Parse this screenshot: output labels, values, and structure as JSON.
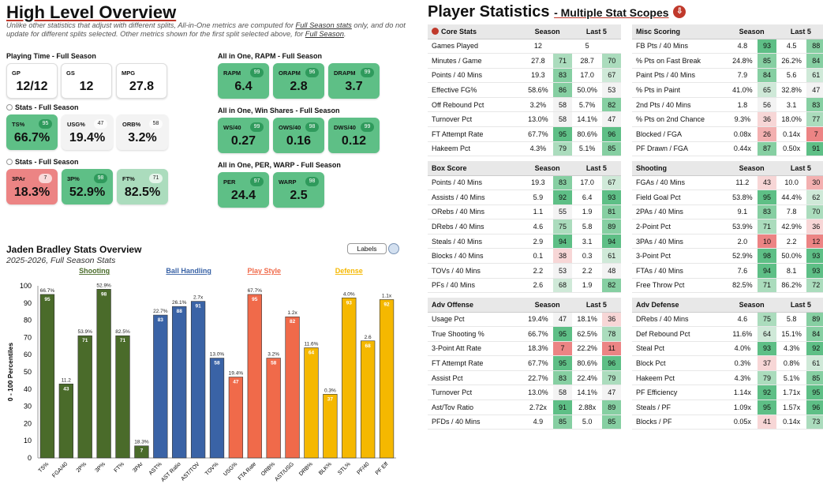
{
  "high_level": {
    "title": "High Level Overview",
    "disclaimer_1": "Unlike other statistics that adjust with different splits, All-in-One metrics are computed for ",
    "disclaimer_link": "Full Season stats",
    "disclaimer_2": " only, and do not update for different splits selected. Other metrics shown for the first split selected above, for ",
    "disclaimer_link2": "Full Season",
    "disclaimer_3": ".",
    "playing_time_label": "Playing Time - Full Season",
    "playing": [
      {
        "label": "GP",
        "value": "12/12"
      },
      {
        "label": "GS",
        "value": "12"
      },
      {
        "label": "MPG",
        "value": "27.8"
      }
    ],
    "stats1_label": "Stats - Full Season",
    "stats1": [
      {
        "label": "TS%",
        "value": "66.7%",
        "pct": "95"
      },
      {
        "label": "USG%",
        "value": "19.4%",
        "pct": "47"
      },
      {
        "label": "ORB%",
        "value": "3.2%",
        "pct": "58"
      }
    ],
    "stats2_label": "Stats - Full Season",
    "stats2": [
      {
        "label": "3PAr",
        "value": "18.3%",
        "pct": "7"
      },
      {
        "label": "3P%",
        "value": "52.9%",
        "pct": "98"
      },
      {
        "label": "FT%",
        "value": "82.5%",
        "pct": "71"
      }
    ],
    "rapm_label": "All in One, RAPM - Full Season",
    "rapm": [
      {
        "label": "RAPM",
        "value": "6.4",
        "pct": "99"
      },
      {
        "label": "ORAPM",
        "value": "2.8",
        "pct": "96"
      },
      {
        "label": "DRAPM",
        "value": "3.7",
        "pct": "99"
      }
    ],
    "ws_label": "All in One, Win Shares - Full Season",
    "ws": [
      {
        "label": "WS/40",
        "value": "0.27",
        "pct": "99"
      },
      {
        "label": "OWS/40",
        "value": "0.16",
        "pct": "98"
      },
      {
        "label": "DWS/40",
        "value": "0.12",
        "pct": "99"
      }
    ],
    "per_label": "All in One, PER, WARP - Full Season",
    "per": [
      {
        "label": "PER",
        "value": "24.4",
        "pct": "97"
      },
      {
        "label": "WARP",
        "value": "2.5",
        "pct": "98"
      }
    ]
  },
  "chart_data": {
    "type": "bar",
    "title": "Jaden Bradley Stats Overview",
    "subtitle": "2025-2026, Full Season Stats",
    "ylabel": "0 - 100 Percentiles",
    "ylim": [
      0,
      100
    ],
    "yticks": [
      0,
      10,
      20,
      30,
      40,
      50,
      60,
      70,
      80,
      90,
      100
    ],
    "labels_button": "Labels",
    "groups": [
      {
        "name": "Shooting",
        "color": "#4a6b2a"
      },
      {
        "name": "Ball Handling",
        "color": "#3a63a6"
      },
      {
        "name": "Play Style",
        "color": "#f06a4a"
      },
      {
        "name": "Defense",
        "color": "#f5b800"
      }
    ],
    "categories": [
      "TS%",
      "FGA/40",
      "2P%",
      "3P%",
      "FT%",
      "3PAr",
      "AST%",
      "AST Ratio",
      "AST/TOV",
      "TOV%",
      "USG%",
      "FTA Rate",
      "ORB%",
      "AST/USG",
      "DRB%",
      "BLK%",
      "STL%",
      "PF/40",
      "PF Eff"
    ],
    "values": [
      95,
      43,
      71,
      98,
      71,
      7,
      83,
      88,
      91,
      58,
      47,
      95,
      58,
      82,
      64,
      37,
      93,
      68,
      92
    ],
    "stat_labels": [
      "66.7%",
      "11.2",
      "53.9%",
      "52.9%",
      "82.5%",
      "18.3%",
      "22.7%",
      "26.1%",
      "2.7x",
      "13.0%",
      "19.4%",
      "67.7%",
      "3.2%",
      "1.2x",
      "11.6%",
      "0.3%",
      "4.0%",
      "2.6",
      "1.1x"
    ],
    "groups_index": [
      0,
      0,
      0,
      0,
      0,
      0,
      1,
      1,
      1,
      1,
      2,
      2,
      2,
      2,
      3,
      3,
      3,
      3,
      3
    ]
  },
  "player_stats": {
    "title": "Player Statistics",
    "subtitle": "- Multiple Stat Scopes",
    "col_season": "Season",
    "col_last5": "Last 5",
    "tables": [
      {
        "name": "Core Stats",
        "rows": [
          [
            "Games Played",
            "12",
            "",
            "5",
            ""
          ],
          [
            "Minutes / Game",
            "27.8",
            "71",
            "28.7",
            "70"
          ],
          [
            "Points / 40 Mins",
            "19.3",
            "83",
            "17.0",
            "67"
          ],
          [
            "Effective FG%",
            "58.6%",
            "86",
            "50.0%",
            "53"
          ],
          [
            "Off Rebound Pct",
            "3.2%",
            "58",
            "5.7%",
            "82"
          ],
          [
            "Turnover Pct",
            "13.0%",
            "58",
            "14.1%",
            "47"
          ],
          [
            "FT Attempt Rate",
            "67.7%",
            "95",
            "80.6%",
            "96"
          ],
          [
            "Hakeem Pct",
            "4.3%",
            "79",
            "5.1%",
            "85"
          ]
        ]
      },
      {
        "name": "Misc Scoring",
        "rows": [
          [
            "FB Pts / 40 Mins",
            "4.8",
            "93",
            "4.5",
            "88"
          ],
          [
            "% Pts on Fast Break",
            "24.8%",
            "85",
            "26.2%",
            "84"
          ],
          [
            "Paint Pts / 40 Mins",
            "7.9",
            "84",
            "5.6",
            "61"
          ],
          [
            "% Pts in Paint",
            "41.0%",
            "65",
            "32.8%",
            "47"
          ],
          [
            "2nd Pts / 40 Mins",
            "1.8",
            "56",
            "3.1",
            "83"
          ],
          [
            "% Pts on 2nd Chance",
            "9.3%",
            "36",
            "18.0%",
            "77"
          ],
          [
            "Blocked / FGA",
            "0.08x",
            "26",
            "0.14x",
            "7"
          ],
          [
            "PF Drawn / FGA",
            "0.44x",
            "87",
            "0.50x",
            "91"
          ]
        ]
      },
      {
        "name": "Box Score",
        "rows": [
          [
            "Points / 40 Mins",
            "19.3",
            "83",
            "17.0",
            "67"
          ],
          [
            "Assists / 40 Mins",
            "5.9",
            "92",
            "6.4",
            "93"
          ],
          [
            "ORebs / 40 Mins",
            "1.1",
            "55",
            "1.9",
            "81"
          ],
          [
            "DRebs / 40 Mins",
            "4.6",
            "75",
            "5.8",
            "89"
          ],
          [
            "Steals / 40 Mins",
            "2.9",
            "94",
            "3.1",
            "94"
          ],
          [
            "Blocks / 40 Mins",
            "0.1",
            "38",
            "0.3",
            "61"
          ],
          [
            "TOVs / 40 Mins",
            "2.2",
            "53",
            "2.2",
            "48"
          ],
          [
            "PFs / 40 Mins",
            "2.6",
            "68",
            "1.9",
            "82"
          ]
        ]
      },
      {
        "name": "Shooting",
        "rows": [
          [
            "FGAs / 40 Mins",
            "11.2",
            "43",
            "10.0",
            "30"
          ],
          [
            "Field Goal Pct",
            "53.8%",
            "95",
            "44.4%",
            "62"
          ],
          [
            "2PAs / 40 Mins",
            "9.1",
            "83",
            "7.8",
            "70"
          ],
          [
            "2-Point Pct",
            "53.9%",
            "71",
            "42.9%",
            "36"
          ],
          [
            "3PAs / 40 Mins",
            "2.0",
            "10",
            "2.2",
            "12"
          ],
          [
            "3-Point Pct",
            "52.9%",
            "98",
            "50.0%",
            "93"
          ],
          [
            "FTAs / 40 Mins",
            "7.6",
            "94",
            "8.1",
            "93"
          ],
          [
            "Free Throw Pct",
            "82.5%",
            "71",
            "86.2%",
            "72"
          ]
        ]
      },
      {
        "name": "Adv Offense",
        "rows": [
          [
            "Usage Pct",
            "19.4%",
            "47",
            "18.1%",
            "36"
          ],
          [
            "True Shooting %",
            "66.7%",
            "95",
            "62.5%",
            "78"
          ],
          [
            "3-Point Att Rate",
            "18.3%",
            "7",
            "22.2%",
            "11"
          ],
          [
            "FT Attempt Rate",
            "67.7%",
            "95",
            "80.6%",
            "96"
          ],
          [
            "Assist Pct",
            "22.7%",
            "83",
            "22.4%",
            "79"
          ],
          [
            "Turnover Pct",
            "13.0%",
            "58",
            "14.1%",
            "47"
          ],
          [
            "Ast/Tov Ratio",
            "2.72x",
            "91",
            "2.88x",
            "89"
          ],
          [
            "PFDs / 40 Mins",
            "4.9",
            "85",
            "5.0",
            "85"
          ]
        ]
      },
      {
        "name": "Adv Defense",
        "rows": [
          [
            "DRebs / 40 Mins",
            "4.6",
            "75",
            "5.8",
            "89"
          ],
          [
            "Def Rebound Pct",
            "11.6%",
            "64",
            "15.1%",
            "84"
          ],
          [
            "Steal Pct",
            "4.0%",
            "93",
            "4.3%",
            "92"
          ],
          [
            "Block Pct",
            "0.3%",
            "37",
            "0.8%",
            "61"
          ],
          [
            "Hakeem Pct",
            "4.3%",
            "79",
            "5.1%",
            "85"
          ],
          [
            "PF Efficiency",
            "1.14x",
            "92",
            "1.71x",
            "95"
          ],
          [
            "Steals / PF",
            "1.09x",
            "95",
            "1.57x",
            "96"
          ],
          [
            "Blocks / PF",
            "0.05x",
            "41",
            "0.14x",
            "73"
          ]
        ]
      }
    ]
  }
}
